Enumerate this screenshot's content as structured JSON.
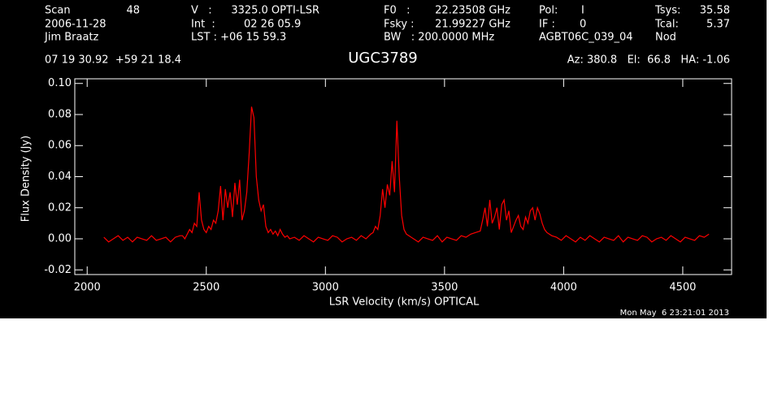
{
  "chart_data": {
    "type": "line",
    "header": [
      "Scan",
      "48",
      "V   :",
      "3325.0 OPTI-LSR",
      "F0   :",
      "22.23508 GHz",
      "Pol:",
      "I",
      "Tsys:",
      "35.58",
      "2006-11-28",
      "Int  :",
      "02 26 05.9",
      "Fsky :",
      "21.99227 GHz",
      "IF :",
      "0",
      "Tcal:",
      "5.37",
      "Jim Braatz",
      "LST : +06 15 59.3",
      "BW   : 200.0000 MHz",
      "AGBT06C_039_04",
      "Nod",
      "07 19 30.92  +59 21 18.4",
      "Az: 380.8   El:  66.8   HA: -1.06"
    ],
    "title": "UGC3789",
    "xlabel": "LSR Velocity (km/s) OPTICAL",
    "ylabel": "Flux Density (Jy)",
    "timestamp": "Mon May  6 23:21:01 2013",
    "color": "#ff0000",
    "xlim": [
      1948,
      4705
    ],
    "ylim": [
      -0.023,
      0.103
    ],
    "xticks": [
      2000,
      2500,
      3000,
      3500,
      4000,
      4500
    ],
    "yticks": [
      -0.02,
      {
        "value": 0,
        "label": "0.00"
      },
      0.02,
      0.04,
      0.06,
      0.08,
      {
        "value": 0.1,
        "label": "0.10"
      }
    ],
    "grid": false,
    "x": [
      2070,
      2090,
      2110,
      2130,
      2150,
      2170,
      2190,
      2210,
      2230,
      2250,
      2270,
      2290,
      2310,
      2330,
      2350,
      2370,
      2390,
      2400,
      2410,
      2420,
      2430,
      2440,
      2450,
      2460,
      2470,
      2480,
      2490,
      2500,
      2510,
      2520,
      2530,
      2540,
      2550,
      2560,
      2570,
      2580,
      2590,
      2600,
      2610,
      2620,
      2630,
      2640,
      2650,
      2660,
      2670,
      2680,
      2690,
      2700,
      2710,
      2720,
      2730,
      2740,
      2750,
      2760,
      2770,
      2780,
      2790,
      2800,
      2810,
      2820,
      2830,
      2840,
      2850,
      2870,
      2890,
      2910,
      2930,
      2950,
      2970,
      2990,
      3010,
      3030,
      3050,
      3070,
      3090,
      3110,
      3130,
      3150,
      3170,
      3190,
      3200,
      3210,
      3220,
      3230,
      3240,
      3250,
      3260,
      3270,
      3280,
      3290,
      3300,
      3310,
      3320,
      3330,
      3340,
      3350,
      3370,
      3390,
      3410,
      3430,
      3450,
      3470,
      3490,
      3510,
      3530,
      3550,
      3570,
      3590,
      3610,
      3630,
      3650,
      3660,
      3670,
      3680,
      3690,
      3700,
      3710,
      3720,
      3730,
      3740,
      3750,
      3760,
      3770,
      3780,
      3790,
      3800,
      3810,
      3820,
      3830,
      3840,
      3850,
      3860,
      3870,
      3880,
      3890,
      3900,
      3910,
      3920,
      3930,
      3940,
      3950,
      3970,
      3990,
      4010,
      4030,
      4050,
      4070,
      4090,
      4110,
      4130,
      4150,
      4170,
      4190,
      4210,
      4230,
      4250,
      4270,
      4290,
      4310,
      4330,
      4350,
      4370,
      4390,
      4410,
      4430,
      4450,
      4470,
      4490,
      4510,
      4530,
      4550,
      4570,
      4590,
      4610
    ],
    "values": [
      0.001,
      -0.002,
      0.0,
      0.002,
      -0.001,
      0.001,
      -0.002,
      0.001,
      0.0,
      -0.001,
      0.002,
      -0.001,
      0.0,
      0.001,
      -0.002,
      0.001,
      0.002,
      0.002,
      0.0,
      0.003,
      0.006,
      0.004,
      0.01,
      0.008,
      0.03,
      0.012,
      0.006,
      0.004,
      0.008,
      0.006,
      0.012,
      0.01,
      0.018,
      0.034,
      0.012,
      0.032,
      0.02,
      0.03,
      0.014,
      0.036,
      0.022,
      0.038,
      0.012,
      0.018,
      0.03,
      0.055,
      0.085,
      0.078,
      0.04,
      0.025,
      0.018,
      0.022,
      0.008,
      0.004,
      0.006,
      0.003,
      0.005,
      0.002,
      0.006,
      0.003,
      0.001,
      0.002,
      0.0,
      0.001,
      -0.001,
      0.002,
      0.0,
      -0.002,
      0.001,
      0.0,
      -0.001,
      0.002,
      0.001,
      -0.002,
      0.0,
      0.001,
      -0.001,
      0.002,
      0.0,
      0.003,
      0.004,
      0.008,
      0.006,
      0.015,
      0.032,
      0.02,
      0.035,
      0.028,
      0.05,
      0.03,
      0.076,
      0.04,
      0.015,
      0.006,
      0.003,
      0.002,
      0.0,
      -0.002,
      0.001,
      0.0,
      -0.001,
      0.002,
      -0.002,
      0.001,
      0.0,
      -0.001,
      0.002,
      0.001,
      0.003,
      0.004,
      0.005,
      0.012,
      0.02,
      0.008,
      0.025,
      0.01,
      0.014,
      0.02,
      0.006,
      0.022,
      0.025,
      0.012,
      0.018,
      0.004,
      0.008,
      0.012,
      0.015,
      0.008,
      0.006,
      0.014,
      0.01,
      0.018,
      0.02,
      0.012,
      0.02,
      0.016,
      0.01,
      0.006,
      0.004,
      0.003,
      0.002,
      0.001,
      -0.001,
      0.002,
      0.0,
      -0.002,
      0.001,
      -0.001,
      0.002,
      0.0,
      -0.002,
      0.001,
      0.0,
      -0.001,
      0.002,
      -0.002,
      0.001,
      0.0,
      -0.001,
      0.002,
      0.001,
      -0.002,
      0.0,
      0.001,
      -0.001,
      0.002,
      0.0,
      -0.002,
      0.001,
      0.0,
      -0.001,
      0.002,
      0.001,
      0.003
    ]
  }
}
